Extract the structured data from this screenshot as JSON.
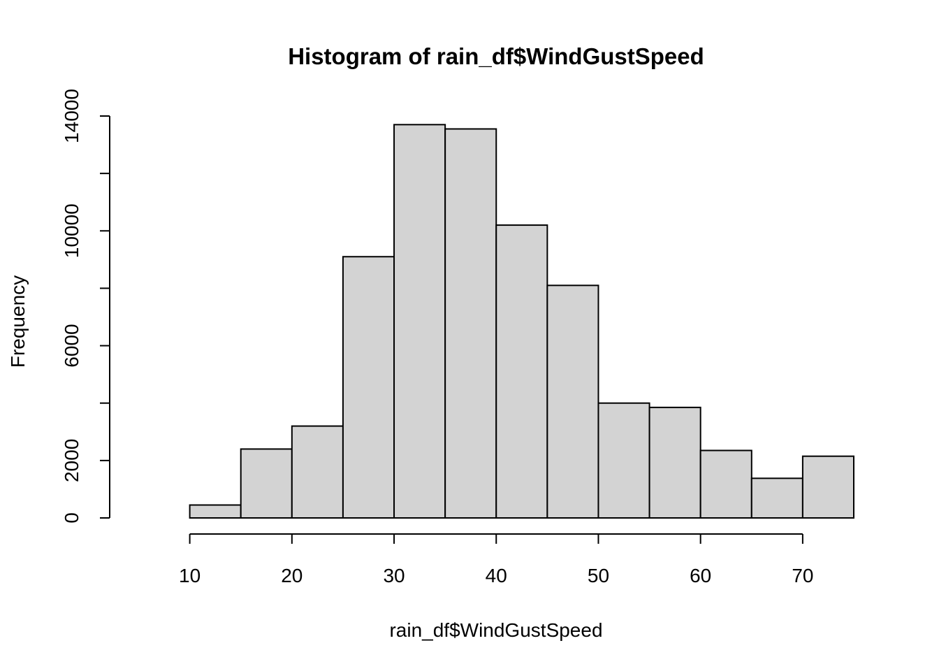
{
  "chart_data": {
    "type": "bar",
    "title": "Histogram of rain_df$WindGustSpeed",
    "xlabel": "rain_df$WindGustSpeed",
    "ylabel": "Frequency",
    "bin_edges": [
      5,
      10,
      15,
      20,
      25,
      30,
      35,
      40,
      45,
      50,
      55,
      60,
      65,
      70,
      75
    ],
    "values": [
      0,
      450,
      2400,
      3200,
      9100,
      13700,
      13550,
      10200,
      8100,
      4000,
      3850,
      2350,
      1380,
      2150
    ],
    "xlim": [
      5,
      75
    ],
    "ylim": [
      0,
      14000
    ],
    "x_ticks": [
      10,
      20,
      30,
      40,
      50,
      60,
      70
    ],
    "y_ticks": [
      0,
      2000,
      4000,
      6000,
      8000,
      10000,
      12000,
      14000
    ],
    "y_tick_labels": [
      "0",
      "2000",
      "",
      "6000",
      "",
      "10000",
      "",
      "14000"
    ],
    "bar_fill": "#d3d3d3",
    "bar_stroke": "#000000",
    "grid": false
  }
}
